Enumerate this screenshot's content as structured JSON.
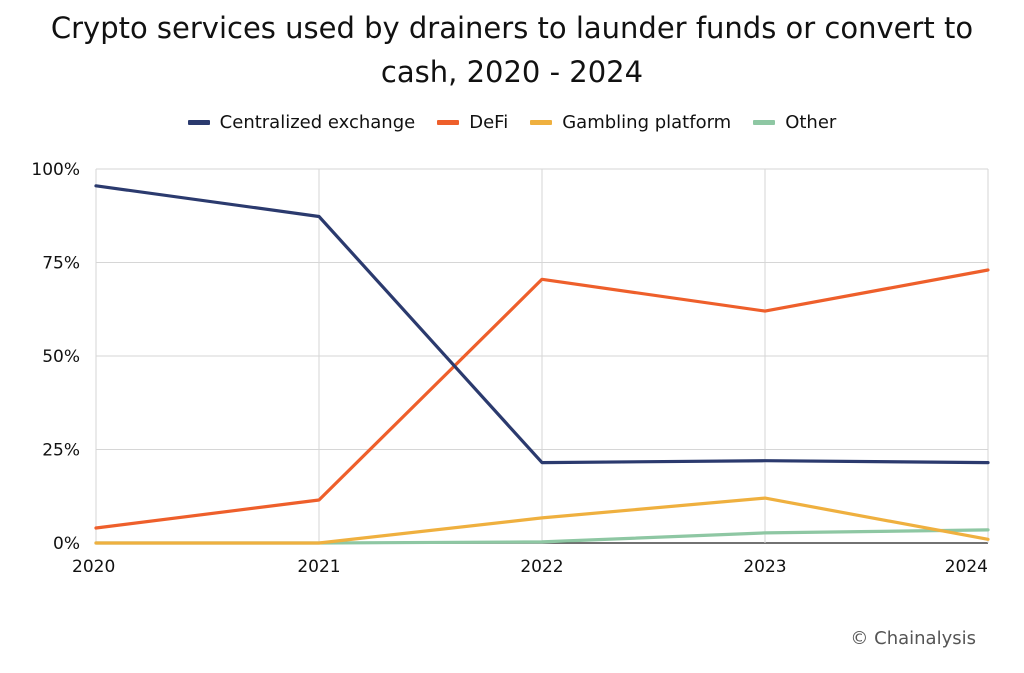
{
  "chart_data": {
    "type": "line",
    "title_line1": "Crypto services used by drainers to launder funds or convert to",
    "title_line2": "cash, 2020 - 2024",
    "x": [
      "2020",
      "2021",
      "2022",
      "2023",
      "2024"
    ],
    "ylim": [
      0,
      100
    ],
    "yticks": [
      "0%",
      "25%",
      "50%",
      "75%",
      "100%"
    ],
    "ytick_values": [
      0,
      25,
      50,
      75,
      100
    ],
    "grid": true,
    "legend_position": "top-center",
    "series": [
      {
        "name": "Centralized exchange",
        "color": "#2b3a6e",
        "values": [
          95.5,
          87.3,
          21.5,
          22,
          21.5
        ]
      },
      {
        "name": "DeFi",
        "color": "#ee5f2b",
        "values": [
          4,
          11.5,
          70.5,
          62,
          73
        ]
      },
      {
        "name": "Gambling platform",
        "color": "#efb03f",
        "values": [
          0,
          0,
          6.7,
          12,
          1
        ]
      },
      {
        "name": "Other",
        "color": "#8ec7a3",
        "values": [
          0,
          0,
          0.3,
          2.7,
          3.5
        ]
      }
    ]
  },
  "credit": "© Chainalysis"
}
